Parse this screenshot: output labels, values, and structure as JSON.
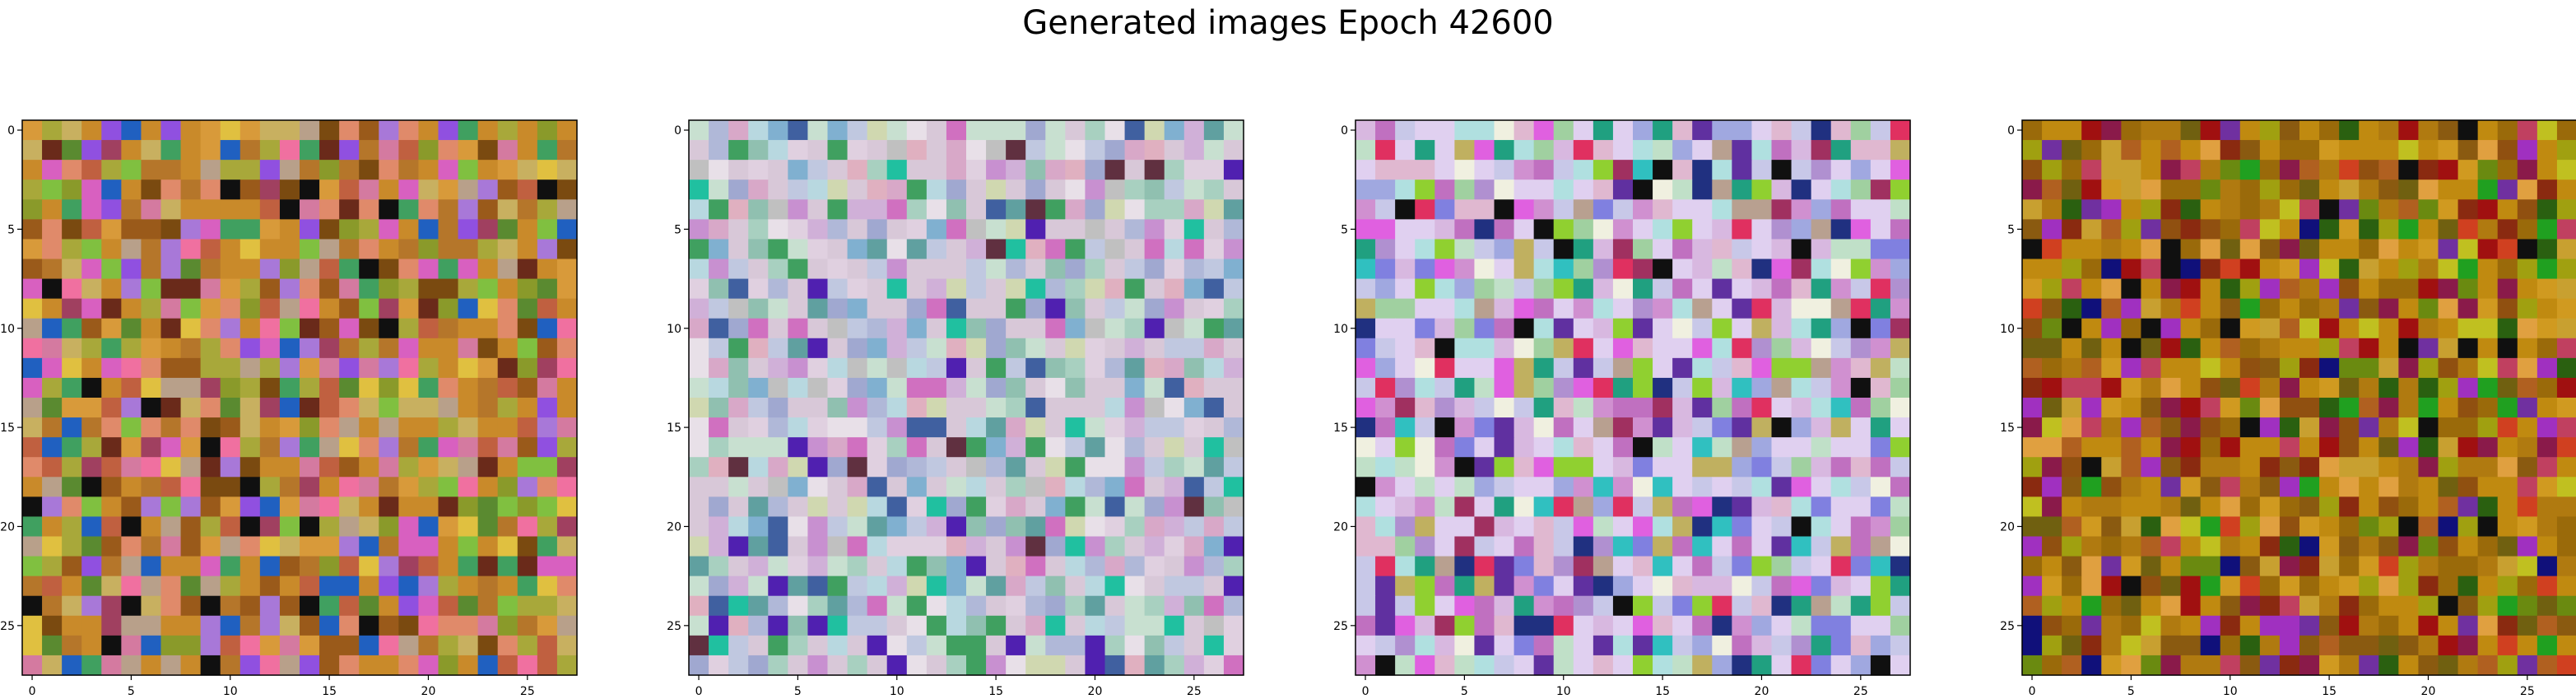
{
  "suptitle": "Generated images Epoch 42600",
  "chart_data": [
    {
      "type": "heatmap",
      "title": "",
      "xlabel": "",
      "ylabel": "",
      "grid_size": 28,
      "xlim": [
        -0.5,
        27.5
      ],
      "ylim": [
        27.5,
        -0.5
      ],
      "xticks": [
        0,
        5,
        10,
        15,
        20,
        25
      ],
      "yticks": [
        0,
        5,
        10,
        15,
        20,
        25
      ],
      "seed": 11,
      "palette": [
        "#c98a2a",
        "#b5762a",
        "#d89a3a",
        "#a8a83a",
        "#c8b060",
        "#e08a6a",
        "#d47aa0",
        "#9a5a1a",
        "#b8a08a",
        "#8a9a2a",
        "#c06040",
        "#7a4a10",
        "#a878d8",
        "#d860c0",
        "#9050e0",
        "#40a060",
        "#e0c040",
        "#5a8a30",
        "#2060c0",
        "#f070a0",
        "#101010",
        "#6a2a1a",
        "#a04060",
        "#80c040"
      ]
    },
    {
      "type": "heatmap",
      "title": "",
      "xlabel": "",
      "ylabel": "",
      "grid_size": 28,
      "xlim": [
        -0.5,
        27.5
      ],
      "ylim": [
        27.5,
        -0.5
      ],
      "xticks": [
        0,
        5,
        10,
        15,
        20,
        25
      ],
      "yticks": [
        0,
        5,
        10,
        15,
        20,
        25
      ],
      "seed": 23,
      "palette": [
        "#d8c8d8",
        "#c0c8e0",
        "#c8e0d0",
        "#e0d0e0",
        "#b0b8d8",
        "#a8d0c0",
        "#d0b0d8",
        "#e8e0e8",
        "#b8d8e0",
        "#d8a8c8",
        "#90c0b0",
        "#c0c0c0",
        "#a0a8d0",
        "#80b0d0",
        "#c890d0",
        "#60a0a0",
        "#d070c0",
        "#4060a0",
        "#40a060",
        "#5020b0",
        "#d0d8b0",
        "#e0b0c0",
        "#603040",
        "#20c0a0"
      ]
    },
    {
      "type": "heatmap",
      "title": "",
      "xlabel": "",
      "ylabel": "",
      "grid_size": 28,
      "xlim": [
        -0.5,
        27.5
      ],
      "ylim": [
        27.5,
        -0.5
      ],
      "xticks": [
        0,
        5,
        10,
        15,
        20,
        25
      ],
      "yticks": [
        0,
        5,
        10,
        15,
        20,
        25
      ],
      "seed": 37,
      "palette": [
        "#e0d0f0",
        "#c8c8e8",
        "#d8b8e0",
        "#b0e0e0",
        "#e0b8d0",
        "#c0e0c8",
        "#a0a8e0",
        "#d090d0",
        "#f0f0e0",
        "#b090d0",
        "#a0d0a0",
        "#c070c0",
        "#8080e0",
        "#e060e0",
        "#30c0c0",
        "#20a080",
        "#b8a090",
        "#c0b060",
        "#90d030",
        "#6030a0",
        "#203080",
        "#101010",
        "#a03060",
        "#e03060"
      ]
    },
    {
      "type": "heatmap",
      "title": "",
      "xlabel": "",
      "ylabel": "",
      "grid_size": 28,
      "xlim": [
        -0.5,
        27.5
      ],
      "ylim": [
        27.5,
        -0.5
      ],
      "xticks": [
        0,
        5,
        10,
        15,
        20,
        25
      ],
      "yticks": [
        0,
        5,
        10,
        15,
        20,
        25
      ],
      "seed": 53,
      "palette": [
        "#c08a10",
        "#b07a10",
        "#9a6a0a",
        "#d09a20",
        "#8a5a10",
        "#a0a010",
        "#c8a030",
        "#706010",
        "#b06020",
        "#905010",
        "#8a2a10",
        "#a01010",
        "#c04060",
        "#8a1a4a",
        "#e0a040",
        "#c0c020",
        "#6a8a10",
        "#2a6010",
        "#7030a0",
        "#a030c0",
        "#10107a",
        "#101010",
        "#20a020",
        "#d04020"
      ]
    }
  ]
}
